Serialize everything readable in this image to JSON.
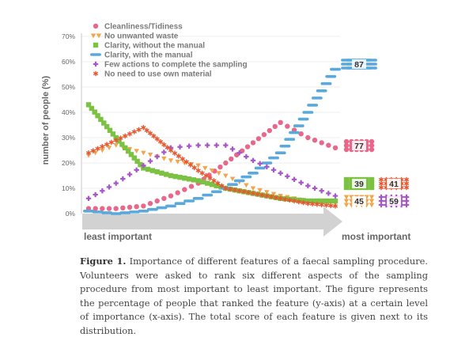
{
  "chart_data": {
    "type": "line",
    "ylabel": "number of people (%)",
    "ylim": [
      0,
      70
    ],
    "yticks": [
      "0%",
      "10%",
      "20%",
      "30%",
      "40%",
      "50%",
      "60%",
      "70%"
    ],
    "x": [
      1,
      2,
      3,
      4,
      5,
      6,
      7,
      8,
      9,
      10
    ],
    "arrow_left_label": "least important",
    "arrow_right_label": "most important",
    "series": [
      {
        "name": "Cleanliness/Tidiness",
        "color": "#e8678a",
        "marker": "circle",
        "total": "77",
        "values": [
          2,
          2,
          3,
          7,
          12,
          20,
          28,
          36,
          30,
          26
        ]
      },
      {
        "name": "No unwanted waste",
        "color": "#f2a54a",
        "marker": "triangle",
        "total": "45",
        "values": [
          23,
          27,
          24,
          21,
          19,
          15,
          10,
          7,
          5,
          4
        ]
      },
      {
        "name": "Clarity, without the manual",
        "color": "#7cc242",
        "marker": "square",
        "total": "39",
        "values": [
          43,
          30,
          18,
          15,
          13,
          10,
          8,
          6,
          5,
          5
        ]
      },
      {
        "name": "Clarity, with the manual",
        "color": "#5aa9dc",
        "marker": "dash",
        "total": "87",
        "values": [
          1,
          0,
          1,
          3,
          6,
          10,
          16,
          24,
          40,
          57
        ]
      },
      {
        "name": "Few actions to complete the sampling",
        "color": "#a557c8",
        "marker": "plus",
        "total": "59",
        "values": [
          6,
          12,
          19,
          26,
          27,
          27,
          21,
          16,
          11,
          7
        ]
      },
      {
        "name": "No need to use own material",
        "color": "#e8562e",
        "marker": "asterisk",
        "total": "41",
        "values": [
          24,
          29,
          34,
          25,
          17,
          10,
          8,
          6,
          4,
          3
        ]
      }
    ]
  },
  "caption": {
    "label": "Figure 1.",
    "text": "Importance of different features of a faecal sampling procedure. Volunteers were asked to rank six different aspects of the sampling procedure from most important to least important. The figure represents the percentage of people that ranked the feature (y-axis) at a certain level of importance (x-axis). The total score of each feature is given next to its distribution."
  }
}
